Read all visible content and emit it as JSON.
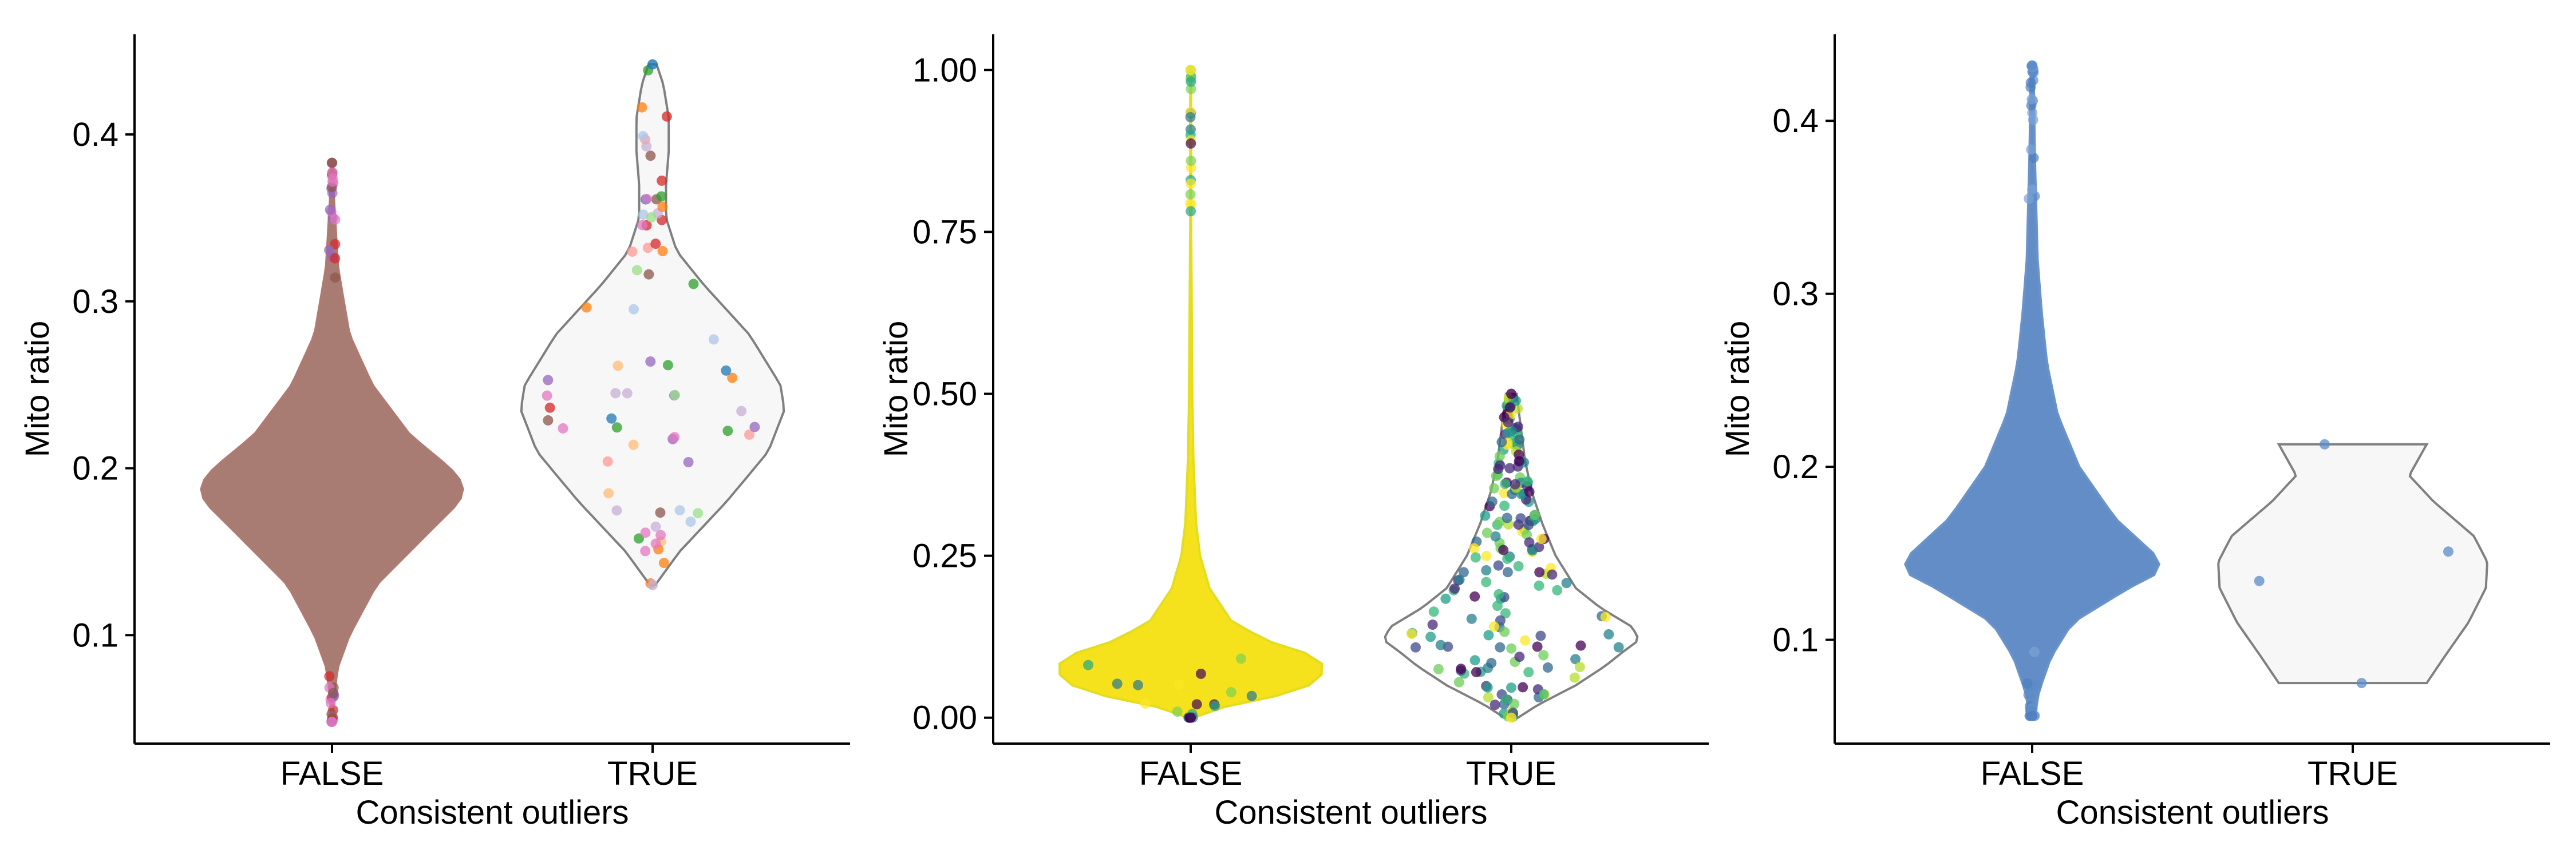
{
  "chart_data": [
    {
      "type": "violin",
      "xlabel": "Consistent outliers",
      "ylabel": "Mito ratio",
      "ylim": [
        0.035,
        0.46
      ],
      "yticks": [
        0.1,
        0.2,
        0.3,
        0.4
      ],
      "ytick_labels": [
        "0.1",
        "0.2",
        "0.3",
        "0.4"
      ],
      "categories": [
        "FALSE",
        "TRUE"
      ],
      "groups": [
        {
          "category": "FALSE",
          "fill": "#a97c73",
          "outline": "#b07a72",
          "points": "dense",
          "point_colors": [
            "#8c564b",
            "#d62728",
            "#9467bd",
            "#e377c2"
          ],
          "profile": [
            [
              0.048,
              0.004
            ],
            [
              0.06,
              0.012
            ],
            [
              0.08,
              0.04
            ],
            [
              0.1,
              0.13
            ],
            [
              0.13,
              0.33
            ],
            [
              0.16,
              0.7
            ],
            [
              0.18,
              0.95
            ],
            [
              0.19,
              0.98
            ],
            [
              0.2,
              0.88
            ],
            [
              0.22,
              0.58
            ],
            [
              0.25,
              0.3
            ],
            [
              0.28,
              0.13
            ],
            [
              0.32,
              0.045
            ],
            [
              0.36,
              0.015
            ],
            [
              0.383,
              0.004
            ]
          ],
          "min": 0.048,
          "max": 0.383
        },
        {
          "category": "TRUE",
          "fill": "#f7f7f7",
          "outline": "#808080",
          "points": "sparse",
          "point_colors": [
            "#1f77b4",
            "#ff7f0e",
            "#2ca02c",
            "#d62728",
            "#9467bd",
            "#8c564b",
            "#e377c2",
            "#aec7e8",
            "#ffbb78",
            "#98df8a",
            "#ff9896",
            "#c5b0d5"
          ],
          "profile": [
            [
              0.13,
              0.02
            ],
            [
              0.15,
              0.2
            ],
            [
              0.18,
              0.55
            ],
            [
              0.21,
              0.86
            ],
            [
              0.235,
              0.98
            ],
            [
              0.25,
              0.95
            ],
            [
              0.28,
              0.72
            ],
            [
              0.31,
              0.38
            ],
            [
              0.33,
              0.18
            ],
            [
              0.35,
              0.1
            ],
            [
              0.37,
              0.1
            ],
            [
              0.39,
              0.12
            ],
            [
              0.41,
              0.12
            ],
            [
              0.43,
              0.08
            ],
            [
              0.442,
              0.03
            ]
          ],
          "min": 0.13,
          "max": 0.442
        }
      ]
    },
    {
      "type": "violin",
      "xlabel": "Consistent outliers",
      "ylabel": "Mito ratio",
      "ylim": [
        -0.04,
        1.055
      ],
      "yticks": [
        0.0,
        0.25,
        0.5,
        0.75,
        1.0
      ],
      "ytick_labels": [
        "0.00",
        "0.25",
        "0.50",
        "0.75",
        "1.00"
      ],
      "categories": [
        "FALSE",
        "TRUE"
      ],
      "groups": [
        {
          "category": "FALSE",
          "fill": "#f5e11c",
          "outline": "#e3dd1f",
          "points": "dense",
          "point_colors": [
            "#fde725",
            "#7ad151",
            "#22a884",
            "#2a788e",
            "#440154"
          ],
          "profile": [
            [
              0.0,
              0.02
            ],
            [
              0.02,
              0.3
            ],
            [
              0.04,
              0.8
            ],
            [
              0.06,
              0.96
            ],
            [
              0.08,
              1.0
            ],
            [
              0.1,
              0.85
            ],
            [
              0.12,
              0.55
            ],
            [
              0.15,
              0.3
            ],
            [
              0.2,
              0.14
            ],
            [
              0.25,
              0.07
            ],
            [
              0.3,
              0.04
            ],
            [
              0.4,
              0.02
            ],
            [
              0.5,
              0.012
            ],
            [
              0.75,
              0.004
            ],
            [
              1.0,
              0.003
            ]
          ],
          "min": 0.0,
          "max": 1.0
        },
        {
          "category": "TRUE",
          "fill": "#ffffff",
          "outline": "#808080",
          "points": "sparse",
          "point_colors": [
            "#440154",
            "#482878",
            "#3e4989",
            "#31688e",
            "#26828e",
            "#1f9e89",
            "#35b779",
            "#6ece58",
            "#b5de2b",
            "#fde725"
          ],
          "profile": [
            [
              0.0,
              0.05
            ],
            [
              0.02,
              0.2
            ],
            [
              0.05,
              0.48
            ],
            [
              0.08,
              0.7
            ],
            [
              0.1,
              0.82
            ],
            [
              0.12,
              0.95
            ],
            [
              0.14,
              0.9
            ],
            [
              0.17,
              0.66
            ],
            [
              0.2,
              0.48
            ],
            [
              0.25,
              0.33
            ],
            [
              0.3,
              0.23
            ],
            [
              0.35,
              0.15
            ],
            [
              0.4,
              0.1
            ],
            [
              0.45,
              0.07
            ],
            [
              0.5,
              0.04
            ]
          ],
          "min": 0.0,
          "max": 0.5
        }
      ]
    },
    {
      "type": "violin",
      "xlabel": "Consistent outliers",
      "ylabel": "Mito ratio",
      "ylim": [
        0.04,
        0.45
      ],
      "yticks": [
        0.1,
        0.2,
        0.3,
        0.4
      ],
      "ytick_labels": [
        "0.1",
        "0.2",
        "0.3",
        "0.4"
      ],
      "categories": [
        "FALSE",
        "TRUE"
      ],
      "groups": [
        {
          "category": "FALSE",
          "fill": "#628dc6",
          "outline": "#6a93c9",
          "points": "dense",
          "point_colors": [
            "#5b8cc8",
            "#7aa3d6",
            "#4f7fbf"
          ],
          "profile": [
            [
              0.056,
              0.02
            ],
            [
              0.07,
              0.05
            ],
            [
              0.09,
              0.14
            ],
            [
              0.11,
              0.3
            ],
            [
              0.13,
              0.72
            ],
            [
              0.14,
              0.97
            ],
            [
              0.15,
              0.9
            ],
            [
              0.17,
              0.62
            ],
            [
              0.2,
              0.35
            ],
            [
              0.23,
              0.19
            ],
            [
              0.26,
              0.11
            ],
            [
              0.29,
              0.07
            ],
            [
              0.32,
              0.04
            ],
            [
              0.38,
              0.02
            ],
            [
              0.432,
              0.01
            ]
          ],
          "min": 0.056,
          "max": 0.432
        },
        {
          "category": "TRUE",
          "fill": "#f7f7f7",
          "outline": "#808080",
          "points": "listed",
          "point_colors": [
            "#5b8cc8"
          ],
          "values": [
            0.213,
            0.151,
            0.134,
            0.075
          ],
          "profile": [
            [
              0.075,
              0.55
            ],
            [
              0.09,
              0.68
            ],
            [
              0.11,
              0.86
            ],
            [
              0.13,
              0.99
            ],
            [
              0.145,
              1.0
            ],
            [
              0.16,
              0.9
            ],
            [
              0.18,
              0.6
            ],
            [
              0.195,
              0.42
            ],
            [
              0.213,
              0.55
            ]
          ],
          "min": 0.075,
          "max": 0.213
        }
      ]
    }
  ]
}
